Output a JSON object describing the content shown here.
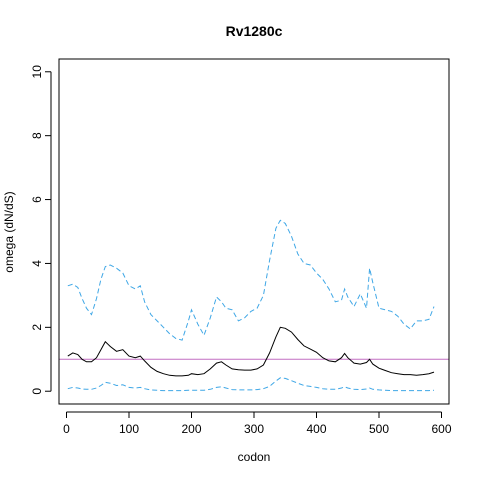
{
  "chart_data": {
    "type": "line",
    "title": "Rv1280c",
    "xlabel": "codon",
    "ylabel": "omega (dN/dS)",
    "xlim": [
      -12,
      612
    ],
    "ylim": [
      -0.4,
      10.4
    ],
    "xticks": [
      "0",
      "100",
      "200",
      "300",
      "400",
      "500",
      "600"
    ],
    "yticks": [
      "0",
      "2",
      "4",
      "6",
      "8",
      "10"
    ],
    "reference_line": {
      "y": 1,
      "color": "#c26fc2"
    },
    "colors": {
      "mean": "#000000",
      "bounds": "#3fa7e6"
    },
    "series": [
      {
        "style": "solid",
        "x": [
          2,
          10,
          18,
          25,
          32,
          40,
          48,
          55,
          62,
          70,
          80,
          90,
          100,
          110,
          118,
          125,
          135,
          145,
          155,
          165,
          175,
          185,
          195,
          200,
          210,
          220,
          230,
          240,
          248,
          255,
          265,
          275,
          285,
          295,
          305,
          315,
          325,
          335,
          342,
          350,
          360,
          370,
          380,
          390,
          400,
          410,
          420,
          430,
          440,
          445,
          450,
          460,
          470,
          480,
          485,
          490,
          500,
          510,
          520,
          530,
          540,
          550,
          560,
          570,
          580,
          588
        ],
        "values": [
          1.1,
          1.2,
          1.15,
          1.0,
          0.92,
          0.92,
          1.05,
          1.3,
          1.55,
          1.4,
          1.25,
          1.3,
          1.1,
          1.05,
          1.1,
          0.95,
          0.75,
          0.62,
          0.55,
          0.5,
          0.48,
          0.48,
          0.5,
          0.55,
          0.52,
          0.55,
          0.7,
          0.88,
          0.92,
          0.82,
          0.7,
          0.67,
          0.66,
          0.66,
          0.7,
          0.82,
          1.2,
          1.7,
          2.0,
          1.97,
          1.85,
          1.62,
          1.42,
          1.32,
          1.22,
          1.05,
          0.95,
          0.92,
          1.05,
          1.18,
          1.05,
          0.88,
          0.85,
          0.9,
          1.0,
          0.85,
          0.72,
          0.65,
          0.58,
          0.55,
          0.52,
          0.52,
          0.5,
          0.52,
          0.55,
          0.6
        ]
      },
      {
        "style": "dashed",
        "x": [
          2,
          10,
          18,
          25,
          32,
          40,
          48,
          55,
          62,
          70,
          80,
          90,
          100,
          110,
          118,
          125,
          135,
          145,
          155,
          165,
          175,
          185,
          195,
          200,
          210,
          220,
          230,
          240,
          248,
          255,
          265,
          275,
          285,
          295,
          305,
          315,
          325,
          335,
          342,
          350,
          360,
          370,
          380,
          390,
          400,
          410,
          420,
          430,
          440,
          445,
          450,
          460,
          470,
          480,
          485,
          490,
          500,
          510,
          520,
          530,
          540,
          550,
          560,
          570,
          580,
          588
        ],
        "values": [
          3.3,
          3.35,
          3.25,
          2.9,
          2.6,
          2.4,
          2.9,
          3.5,
          3.9,
          3.95,
          3.85,
          3.7,
          3.3,
          3.2,
          3.3,
          2.8,
          2.4,
          2.2,
          2.0,
          1.8,
          1.65,
          1.6,
          2.2,
          2.55,
          2.1,
          1.75,
          2.3,
          2.95,
          2.8,
          2.6,
          2.55,
          2.2,
          2.3,
          2.5,
          2.6,
          3.0,
          4.1,
          5.1,
          5.35,
          5.25,
          4.85,
          4.3,
          4.0,
          3.95,
          3.7,
          3.5,
          3.2,
          2.8,
          2.85,
          3.2,
          2.95,
          2.65,
          3.05,
          2.6,
          3.85,
          3.4,
          2.6,
          2.55,
          2.5,
          2.35,
          2.1,
          1.95,
          2.2,
          2.2,
          2.25,
          2.65
        ]
      },
      {
        "style": "dashed",
        "x": [
          2,
          10,
          18,
          25,
          32,
          40,
          48,
          55,
          62,
          70,
          80,
          90,
          100,
          110,
          118,
          125,
          135,
          145,
          155,
          165,
          175,
          185,
          195,
          200,
          210,
          220,
          230,
          240,
          248,
          255,
          265,
          275,
          285,
          295,
          305,
          315,
          325,
          335,
          342,
          350,
          360,
          370,
          380,
          390,
          400,
          410,
          420,
          430,
          440,
          445,
          450,
          460,
          470,
          480,
          485,
          490,
          500,
          510,
          520,
          530,
          540,
          550,
          560,
          570,
          580,
          588
        ],
        "values": [
          0.08,
          0.12,
          0.1,
          0.07,
          0.06,
          0.06,
          0.1,
          0.18,
          0.28,
          0.25,
          0.18,
          0.2,
          0.12,
          0.1,
          0.12,
          0.08,
          0.04,
          0.03,
          0.02,
          0.02,
          0.02,
          0.02,
          0.03,
          0.03,
          0.03,
          0.03,
          0.06,
          0.12,
          0.14,
          0.1,
          0.05,
          0.04,
          0.04,
          0.04,
          0.05,
          0.08,
          0.15,
          0.32,
          0.42,
          0.4,
          0.33,
          0.25,
          0.18,
          0.15,
          0.12,
          0.08,
          0.06,
          0.06,
          0.1,
          0.14,
          0.1,
          0.06,
          0.05,
          0.07,
          0.1,
          0.06,
          0.04,
          0.03,
          0.02,
          0.02,
          0.02,
          0.02,
          0.02,
          0.02,
          0.02,
          0.03
        ]
      }
    ]
  }
}
